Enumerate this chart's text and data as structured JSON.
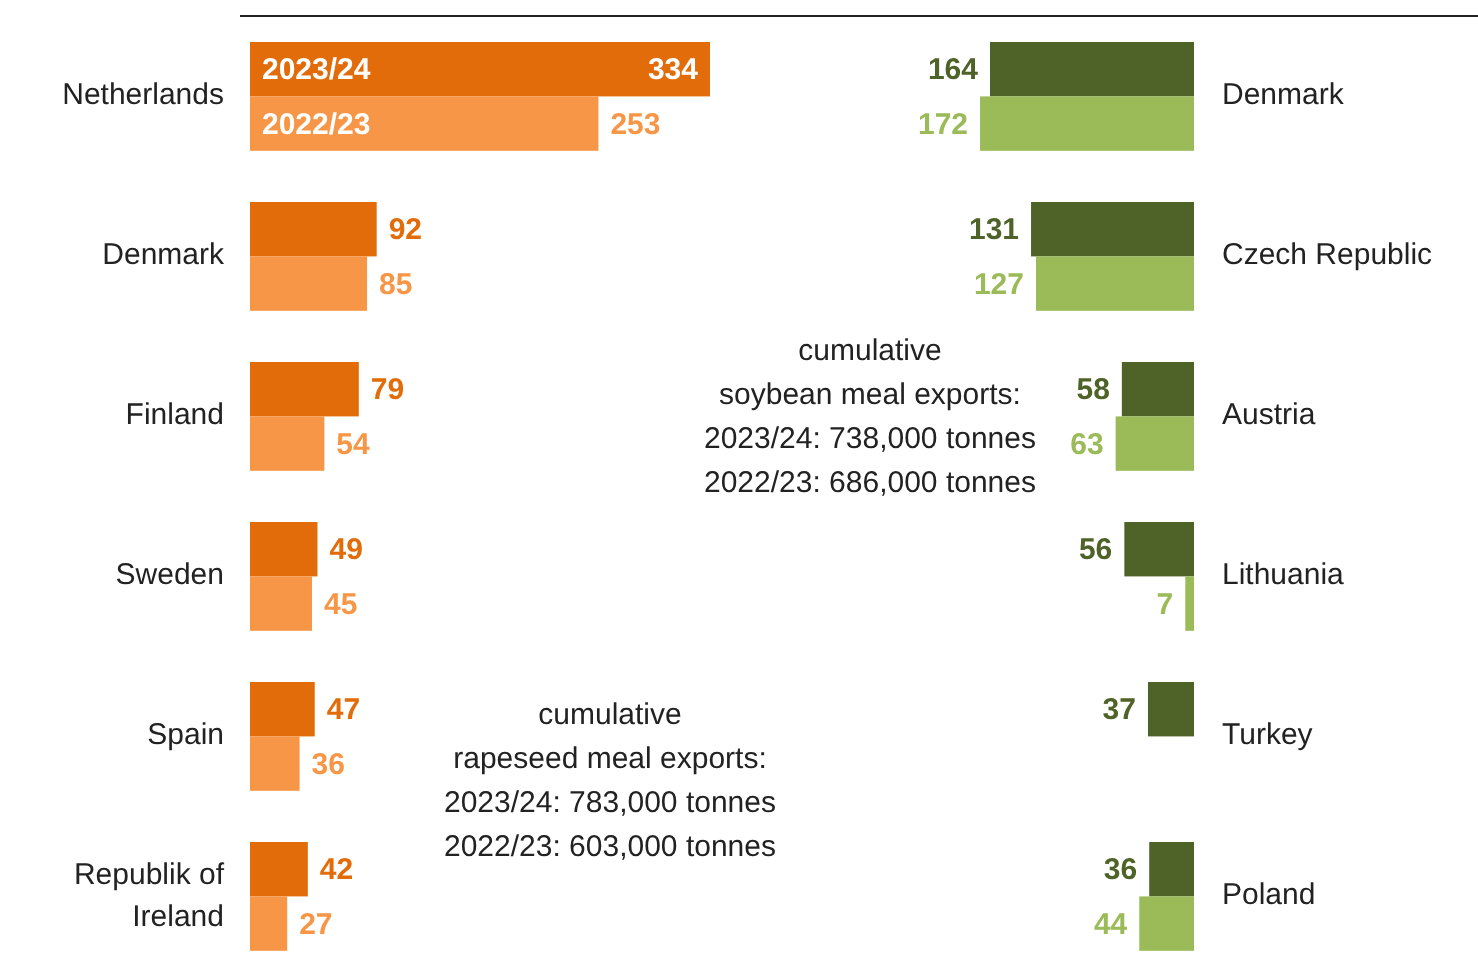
{
  "chart_data": [
    {
      "type": "bar",
      "orientation": "horizontal",
      "categories": [
        "Netherlands",
        "Denmark",
        "Finland",
        "Sweden",
        "Spain",
        "Republik of Ireland"
      ],
      "data_labels": true,
      "annotations": [
        "cumulative\nrapeseed meal exports:\n2023/24: 783,000 tonnes\n2022/23: 603,000 tonnes"
      ],
      "series": [
        {
          "name": "2023/24",
          "color": "#e36c0a",
          "values": [
            334,
            92,
            79,
            49,
            47,
            42
          ]
        },
        {
          "name": "2022/23",
          "color": "#f79646",
          "values": [
            253,
            85,
            54,
            45,
            36,
            27
          ]
        }
      ]
    },
    {
      "type": "bar",
      "orientation": "horizontal",
      "categories": [
        "Denmark",
        "Czech Republic",
        "Austria",
        "Lithuania",
        "Turkey",
        "Poland"
      ],
      "data_labels": true,
      "annotations": [
        "cumulative\nsoybean meal exports:\n2023/24: 738,000 tonnes\n2022/23: 686,000 tonnes"
      ],
      "series": [
        {
          "color": "#4f6228",
          "values": [
            164,
            131,
            58,
            56,
            37,
            36
          ]
        },
        {
          "color": "#9bbb59",
          "values": [
            172,
            127,
            63,
            7,
            null,
            44
          ]
        }
      ]
    }
  ]
}
